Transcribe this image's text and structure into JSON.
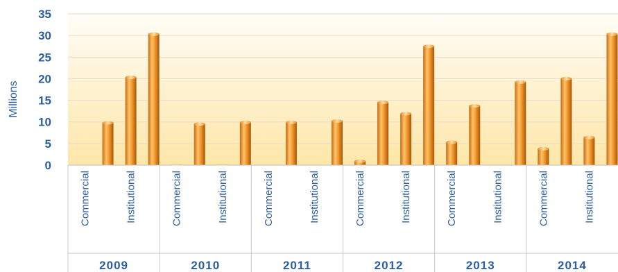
{
  "chart_data": {
    "type": "bar",
    "ylabel": "Millions",
    "ylim": [
      0,
      35
    ],
    "yticks": [
      0,
      5,
      10,
      15,
      20,
      25,
      30,
      35
    ],
    "groups": [
      "2009",
      "2010",
      "2011",
      "2012",
      "2013",
      "2014"
    ],
    "category_labels": [
      "Commercial",
      "Institutional"
    ],
    "bars_per_group": 4,
    "values": [
      [
        0,
        9.8,
        20.3,
        30.3
      ],
      [
        0.1,
        9.5,
        0.1,
        9.9
      ],
      [
        0,
        9.9,
        0,
        10.2
      ],
      [
        0.9,
        14.5,
        11.9,
        27.5
      ],
      [
        5.3,
        13.7,
        0,
        19.2
      ],
      [
        3.8,
        20.0,
        6.4,
        30.3
      ]
    ],
    "grid": true,
    "legend": "none",
    "colors": {
      "bar": "#f39a2e",
      "bar_dark": "#c96a10",
      "bar_light": "#ffd08a",
      "text": "#2c5f9e",
      "grid": "#e6dcc8",
      "plot_bg_top": "#fffdf5",
      "plot_bg_bottom": "#fde9b3"
    }
  }
}
